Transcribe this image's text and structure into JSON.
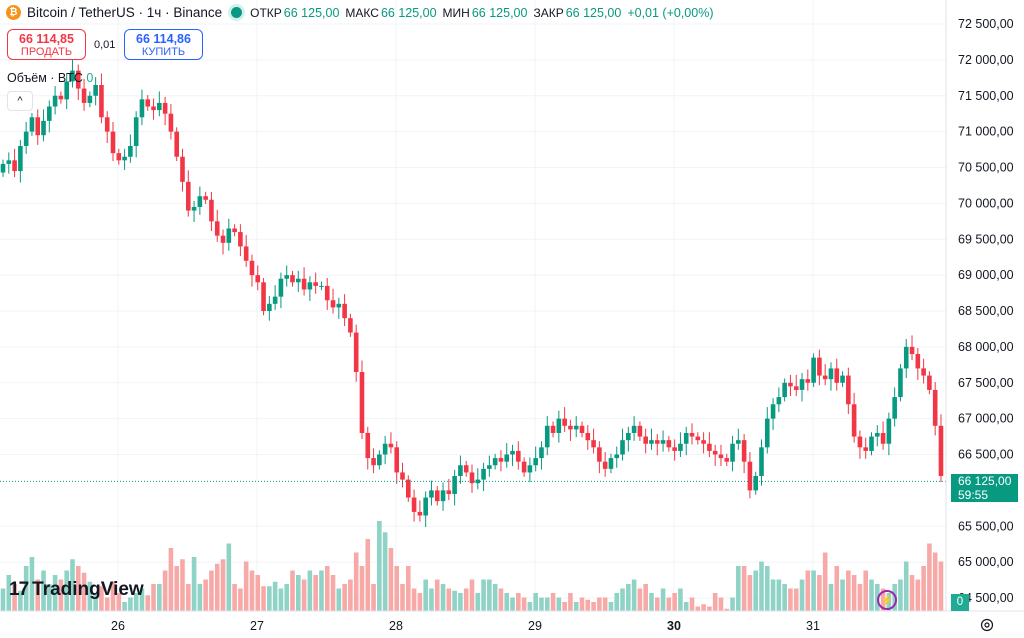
{
  "header": {
    "coin_symbol": "₿",
    "pair": "Bitcoin / TetherUS · 1ч · Binance",
    "open_label": "ОТКР",
    "open": "66 125,00",
    "high_label": "МАКС",
    "high": "66 125,00",
    "low_label": "МИН",
    "low": "66 125,00",
    "close_label": "ЗАКР",
    "close": "66 125,00",
    "change": "+0,01 (+0,00%)"
  },
  "trade": {
    "sell_price": "66 114,85",
    "sell_label": "ПРОДАТЬ",
    "spread": "0,01",
    "buy_price": "66 114,86",
    "buy_label": "КУПИТЬ"
  },
  "volume": {
    "label": "Объём · BTC",
    "value": "0"
  },
  "collapse_symbol": "^",
  "brand": {
    "logo": "17",
    "name": "TradingView"
  },
  "price_tag": {
    "price": "66 125,00",
    "timer": "59:55"
  },
  "volume_tag": "0",
  "colors": {
    "up": "#089981",
    "down": "#f23645",
    "vol_up": "#8fd3c7",
    "vol_down": "#f7a9a7",
    "grid": "#f0f3fa",
    "accent": "#2962ff"
  },
  "chart_data": {
    "type": "candlestick",
    "y_axis_ticks": [
      72500,
      72000,
      71500,
      71000,
      70500,
      70000,
      69500,
      69000,
      68500,
      68000,
      67500,
      67000,
      66500,
      65500,
      65000,
      64500
    ],
    "y_axis_labels": [
      "72 500,00",
      "72 000,00",
      "71 500,00",
      "71 000,00",
      "70 500,00",
      "70 000,00",
      "69 500,00",
      "69 000,00",
      "68 500,00",
      "68 000,00",
      "67 500,00",
      "67 000,00",
      "66 500,00",
      "65 500,00",
      "65 000,00",
      "64 500,00"
    ],
    "ylim": [
      64300,
      72700
    ],
    "x_ticks": [
      {
        "label": "26",
        "bold": false
      },
      {
        "label": "27",
        "bold": false
      },
      {
        "label": "28",
        "bold": false
      },
      {
        "label": "29",
        "bold": false
      },
      {
        "label": "30",
        "bold": true
      },
      {
        "label": "31",
        "bold": false
      }
    ],
    "last_price": 66125,
    "candles_close": [
      70550,
      70600,
      70450,
      70800,
      71000,
      71200,
      70950,
      71150,
      71350,
      71500,
      71450,
      71700,
      71850,
      71600,
      71400,
      71500,
      71650,
      71200,
      71000,
      70700,
      70600,
      70650,
      70800,
      71200,
      71450,
      71350,
      71300,
      71400,
      71250,
      71000,
      70650,
      70300,
      69900,
      69950,
      70100,
      70050,
      69750,
      69550,
      69450,
      69650,
      69600,
      69400,
      69200,
      69000,
      68900,
      68500,
      68600,
      68700,
      68950,
      69000,
      68900,
      68950,
      68800,
      68900,
      68850,
      68850,
      68650,
      68550,
      68600,
      68400,
      68200,
      67650,
      66800,
      66450,
      66350,
      66500,
      66650,
      66600,
      66250,
      66150,
      65900,
      65700,
      65650,
      65900,
      66000,
      65850,
      66000,
      65950,
      66200,
      66350,
      66250,
      66100,
      66150,
      66300,
      66350,
      66450,
      66400,
      66500,
      66550,
      66400,
      66250,
      66350,
      66450,
      66600,
      66900,
      66800,
      67000,
      66900,
      66850,
      66900,
      66800,
      66700,
      66600,
      66400,
      66300,
      66450,
      66500,
      66700,
      66800,
      66900,
      66750,
      66650,
      66700,
      66650,
      66700,
      66600,
      66550,
      66650,
      66800,
      66750,
      66700,
      66650,
      66550,
      66500,
      66450,
      66400,
      66650,
      66700,
      66400,
      66000,
      66200,
      66600,
      67000,
      67200,
      67300,
      67500,
      67450,
      67400,
      67550,
      67500,
      67850,
      67600,
      67550,
      67700,
      67500,
      67600,
      67200,
      66750,
      66600,
      66550,
      66750,
      66800,
      66650,
      67000,
      67300,
      67700,
      68000,
      67900,
      67700,
      67600,
      67400,
      66900,
      66200
    ],
    "volume_max": 40,
    "volumes": [
      10,
      16,
      12,
      9,
      20,
      24,
      14,
      18,
      12,
      16,
      14,
      18,
      23,
      20,
      17,
      13,
      8,
      11,
      6,
      13,
      8,
      4,
      6,
      8,
      10,
      7,
      12,
      12,
      18,
      28,
      20,
      23,
      12,
      24,
      12,
      14,
      18,
      21,
      23,
      30,
      12,
      10,
      22,
      18,
      16,
      11,
      11,
      13,
      10,
      12,
      18,
      16,
      14,
      18,
      16,
      18,
      20,
      16,
      10,
      12,
      14,
      26,
      20,
      32,
      12,
      40,
      35,
      28,
      20,
      12,
      20,
      10,
      8,
      14,
      10,
      14,
      12,
      10,
      9,
      8,
      10,
      14,
      8,
      14,
      14,
      12,
      10,
      8,
      6,
      8,
      6,
      4,
      8,
      6,
      6,
      8,
      6,
      4,
      8,
      4,
      6,
      5,
      4,
      6,
      6,
      4,
      8,
      10,
      12,
      14,
      10,
      12,
      8,
      6,
      10,
      6,
      8,
      10,
      4,
      6,
      2,
      3,
      2,
      8,
      6,
      1,
      6,
      20,
      20,
      16,
      18,
      22,
      20,
      14,
      14,
      12,
      10,
      10,
      14,
      18,
      18,
      16,
      26,
      12,
      20,
      14,
      18,
      16,
      12,
      18,
      14,
      12,
      10,
      8,
      12,
      14,
      22,
      16,
      14,
      20,
      30,
      26,
      22
    ]
  }
}
